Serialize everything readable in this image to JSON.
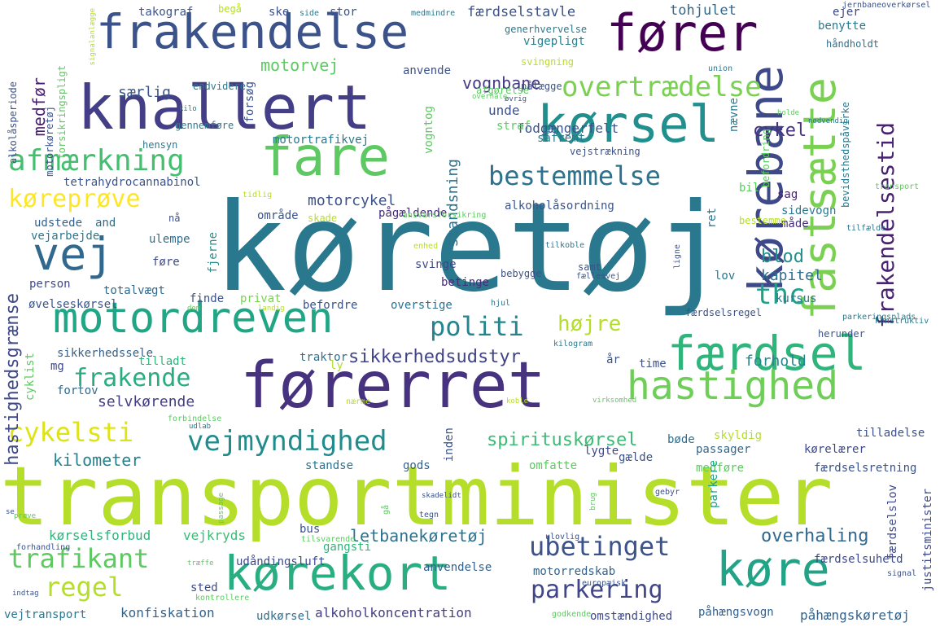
{
  "words": [
    {
      "text": "køretøj",
      "color": "#2a788e"
    },
    {
      "text": "transportminister",
      "color": "#b5de2b"
    },
    {
      "text": "førerret",
      "color": "#46327e"
    },
    {
      "text": "knallert",
      "color": "#433e85"
    },
    {
      "text": "frakendelse",
      "color": "#3b528b"
    },
    {
      "text": "fører",
      "color": "#440154"
    },
    {
      "text": "fare",
      "color": "#5ec962"
    },
    {
      "text": "kørsel",
      "color": "#218f8d"
    },
    {
      "text": "kørebane",
      "color": "#3e4989"
    },
    {
      "text": "fastsætte",
      "color": "#7ad151"
    },
    {
      "text": "frakendelsestid",
      "color": "#482173"
    },
    {
      "text": "motordreven",
      "color": "#21a685"
    },
    {
      "text": "færdsel",
      "color": "#2fb47c"
    },
    {
      "text": "hastighed",
      "color": "#6ece58"
    },
    {
      "text": "kørekort",
      "color": "#28ae80"
    },
    {
      "text": "køre",
      "color": "#20a386"
    },
    {
      "text": "vej",
      "color": "#31688e"
    },
    {
      "text": "afmærkning",
      "color": "#44bf70"
    },
    {
      "text": "overtrædelse",
      "color": "#7ad151"
    },
    {
      "text": "bestemmelse",
      "color": "#2c728e"
    },
    {
      "text": "vejmyndighed",
      "color": "#228c8d"
    },
    {
      "text": "politi",
      "color": "#25848e"
    },
    {
      "text": "ubetinget",
      "color": "#3b528b"
    },
    {
      "text": "parkering",
      "color": "#404688"
    },
    {
      "text": "trafikant",
      "color": "#5ec962"
    },
    {
      "text": "regel",
      "color": "#b5de2b"
    },
    {
      "text": "cykelsti",
      "color": "#dde318"
    },
    {
      "text": "køreprøve",
      "color": "#fde725"
    },
    {
      "text": "thc",
      "color": "#1fa088"
    },
    {
      "text": "højre",
      "color": "#b5de2b"
    },
    {
      "text": "frakende",
      "color": "#27ad81"
    },
    {
      "text": "sikkerhedsudstyr",
      "color": "#414487"
    },
    {
      "text": "spirituskørsel",
      "color": "#3bbb75"
    },
    {
      "text": "overhaling",
      "color": "#31688e"
    },
    {
      "text": "letbanekøretøj",
      "color": "#2c728e"
    },
    {
      "text": "motorcykel",
      "color": "#3b528b"
    },
    {
      "text": "vognbane",
      "color": "#443983"
    },
    {
      "text": "cykel",
      "color": "#46327e"
    },
    {
      "text": "medfør",
      "color": "#481f70"
    },
    {
      "text": "særlig",
      "color": "#39568c"
    },
    {
      "text": "motorvej",
      "color": "#5ec962"
    },
    {
      "text": "kilometer",
      "color": "#26828e"
    },
    {
      "text": "selvkørende",
      "color": "#433e85"
    },
    {
      "text": "blod",
      "color": "#218f8d"
    },
    {
      "text": "kapitel",
      "color": "#2e6e8e"
    },
    {
      "text": "forhold",
      "color": "#25858e"
    },
    {
      "text": "hastighedsgrænse",
      "color": "#3e4989"
    },
    {
      "text": "standsning",
      "color": "#2c728e"
    },
    {
      "text": "kørselsforbud",
      "color": "#2fb47c"
    },
    {
      "text": "vejkryds",
      "color": "#3bbb75"
    },
    {
      "text": "alkoholkoncentration",
      "color": "#433e85"
    },
    {
      "text": "konfiskation",
      "color": "#33638d"
    },
    {
      "text": "påhængskøretøj",
      "color": "#33638d"
    },
    {
      "text": "påhængsvogn",
      "color": "#34618d"
    },
    {
      "text": "takograf",
      "color": "#3a548c"
    },
    {
      "text": "færdselstavle",
      "color": "#3b528b"
    },
    {
      "text": "tohjulet",
      "color": "#31688e"
    },
    {
      "text": "vigepligt",
      "color": "#26828e"
    },
    {
      "text": "fodgængerfelt",
      "color": "#3b528b"
    },
    {
      "text": "tetrahydrocannabinol",
      "color": "#3b528b"
    },
    {
      "text": "motortrafikvej",
      "color": "#2a788e"
    },
    {
      "text": "sikkerhedssele",
      "color": "#34618d"
    },
    {
      "text": "alkoholåsordning",
      "color": "#3a548c"
    },
    {
      "text": "pågældende",
      "color": "#472d7b"
    },
    {
      "text": "område",
      "color": "#3a548c"
    },
    {
      "text": "person",
      "color": "#3e4989"
    },
    {
      "text": "totalvægt",
      "color": "#31688e"
    },
    {
      "text": "øvelseskørsel",
      "color": "#3a548c"
    },
    {
      "text": "ulempe",
      "color": "#2e6e8e"
    },
    {
      "text": "føre",
      "color": "#3e4989"
    },
    {
      "text": "udstede",
      "color": "#34618d"
    },
    {
      "text": "vejarbejde",
      "color": "#2a788e"
    },
    {
      "text": "and",
      "color": "#2e6e8e"
    },
    {
      "text": "lov",
      "color": "#2a788e"
    },
    {
      "text": "kursus",
      "color": "#2a788e"
    },
    {
      "text": "sag",
      "color": "#482173"
    },
    {
      "text": "bil",
      "color": "#5ec962"
    },
    {
      "text": "sidevogn",
      "color": "#2a788e"
    },
    {
      "text": "måde",
      "color": "#472d7b"
    },
    {
      "text": "ret",
      "color": "#2c728e"
    },
    {
      "text": "fjerne",
      "color": "#218f8d"
    },
    {
      "text": "finde",
      "color": "#3b528b"
    },
    {
      "text": "privat",
      "color": "#7ad151"
    },
    {
      "text": "befordre",
      "color": "#3b528b"
    },
    {
      "text": "overstige",
      "color": "#2c728e"
    },
    {
      "text": "betinge",
      "color": "#472d7b"
    },
    {
      "text": "svinge",
      "color": "#3e4989"
    },
    {
      "text": "traktor",
      "color": "#2e6e8e"
    },
    {
      "text": "ly",
      "color": "#b5de2b"
    },
    {
      "text": "år",
      "color": "#3b528b"
    },
    {
      "text": "time",
      "color": "#3b528b"
    },
    {
      "text": "tilladt",
      "color": "#2fb47c"
    },
    {
      "text": "cyklist",
      "color": "#5ec962"
    },
    {
      "text": "fortov",
      "color": "#31688e"
    },
    {
      "text": "mg",
      "color": "#3e4989"
    },
    {
      "text": "skyldig",
      "color": "#b5de2b"
    },
    {
      "text": "bøde",
      "color": "#2e6e8e"
    },
    {
      "text": "passager",
      "color": "#31688e"
    },
    {
      "text": "kørelærer",
      "color": "#3e4989"
    },
    {
      "text": "tilladelse",
      "color": "#3b528b"
    },
    {
      "text": "gælde",
      "color": "#3b528b"
    },
    {
      "text": "lygte",
      "color": "#3e4989"
    },
    {
      "text": "omfatte",
      "color": "#5ec962"
    },
    {
      "text": "medføre",
      "color": "#5ec962"
    },
    {
      "text": "færdselsretning",
      "color": "#3b528b"
    },
    {
      "text": "standse",
      "color": "#2c728e"
    },
    {
      "text": "gods",
      "color": "#34618d"
    },
    {
      "text": "inden",
      "color": "#3b528b"
    },
    {
      "text": "parkere",
      "color": "#1fa088"
    },
    {
      "text": "færdselslov",
      "color": "#3e4989"
    },
    {
      "text": "justitsminister",
      "color": "#3e4989"
    },
    {
      "text": "færdselsuheld",
      "color": "#3e4989"
    },
    {
      "text": "bus",
      "color": "#3b528b"
    },
    {
      "text": "gangsti",
      "color": "#2fb47c"
    },
    {
      "text": "anvendelse",
      "color": "#34618d"
    },
    {
      "text": "udåndingsluft",
      "color": "#3e4989"
    },
    {
      "text": "motorredskab",
      "color": "#33638d"
    },
    {
      "text": "sted",
      "color": "#3e4989"
    },
    {
      "text": "vejtransport",
      "color": "#2a788e"
    },
    {
      "text": "udkørsel",
      "color": "#2e6e8e"
    },
    {
      "text": "omstændighed",
      "color": "#3e4989"
    },
    {
      "text": "ejer",
      "color": "#3e4989"
    },
    {
      "text": "benytte",
      "color": "#2a788e"
    },
    {
      "text": "håndholdt",
      "color": "#2e6e8e"
    },
    {
      "text": "generhvervelse",
      "color": "#2a788e"
    },
    {
      "text": "svingning",
      "color": "#b5de2b"
    },
    {
      "text": "anvende",
      "color": "#3b528b"
    },
    {
      "text": "afgørelse",
      "color": "#5ec962"
    },
    {
      "text": "pålægge",
      "color": "#3b528b"
    },
    {
      "text": "unde",
      "color": "#3b528b"
    },
    {
      "text": "straf",
      "color": "#5ec962"
    },
    {
      "text": "såfremt",
      "color": "#2a788e"
    },
    {
      "text": "vejstrækning",
      "color": "#3b528b"
    },
    {
      "text": "nævne",
      "color": "#2a788e"
    },
    {
      "text": "befordring",
      "color": "#5ec962"
    },
    {
      "text": "bevidsthedspåvirke",
      "color": "#2a788e"
    },
    {
      "text": "alkolåsperiode",
      "color": "#3b528b"
    },
    {
      "text": "motorkøretøj",
      "color": "#3b528b"
    },
    {
      "text": "forsikringspligt",
      "color": "#5ec962"
    },
    {
      "text": "signalanlægge",
      "color": "#b5de2b"
    },
    {
      "text": "forsøg",
      "color": "#3b528b"
    },
    {
      "text": "endvidere",
      "color": "#2a788e"
    },
    {
      "text": "gennemføre",
      "color": "#2a788e"
    },
    {
      "text": "hensyn",
      "color": "#2a788e"
    },
    {
      "text": "vogntog",
      "color": "#5ec962"
    },
    {
      "text": "kilo",
      "color": "#2a788e"
    },
    {
      "text": "ske",
      "color": "#3b528b"
    },
    {
      "text": "side",
      "color": "#2a788e"
    },
    {
      "text": "stor",
      "color": "#3b528b"
    },
    {
      "text": "medmindre",
      "color": "#2a788e"
    },
    {
      "text": "begå",
      "color": "#b5de2b"
    },
    {
      "text": "jernbaneoverkørsel",
      "color": "#3b528b"
    },
    {
      "text": "union",
      "color": "#2a788e"
    },
    {
      "text": "overhale",
      "color": "#5ec962"
    },
    {
      "text": "øvrig",
      "color": "#3b528b"
    },
    {
      "text": "holde",
      "color": "#5ec962"
    },
    {
      "text": "nødvendig",
      "color": "#2a788e"
    },
    {
      "text": "tidlig",
      "color": "#b5de2b"
    },
    {
      "text": "transport",
      "color": "#5ec962"
    },
    {
      "text": "skade",
      "color": "#b5de2b"
    },
    {
      "text": "ansvarsforsikring",
      "color": "#5ec962"
    },
    {
      "text": "bestemme",
      "color": "#b5de2b"
    },
    {
      "text": "tilfælde",
      "color": "#2a788e"
    },
    {
      "text": "nå",
      "color": "#3b528b"
    },
    {
      "text": "enhed",
      "color": "#b5de2b"
    },
    {
      "text": "tilkoble",
      "color": "#2a788e"
    },
    {
      "text": "ligne",
      "color": "#3b528b"
    },
    {
      "text": "samt",
      "color": "#3b528b"
    },
    {
      "text": "fællesvej",
      "color": "#3b528b"
    },
    {
      "text": "bebygge",
      "color": "#3b528b"
    },
    {
      "text": "hjul",
      "color": "#2a788e"
    },
    {
      "text": "parkeringsplads",
      "color": "#2a788e"
    },
    {
      "text": "konstruktiv",
      "color": "#2a788e"
    },
    {
      "text": "herunder",
      "color": "#3b528b"
    },
    {
      "text": "færdselsregel",
      "color": "#3b528b"
    },
    {
      "text": "kilogram",
      "color": "#2a788e"
    },
    {
      "text": "dom",
      "color": "#5ec962"
    },
    {
      "text": "landig",
      "color": "#b5de2b"
    },
    {
      "text": "virksomhed",
      "color": "#5ec962"
    },
    {
      "text": "nærme",
      "color": "#b5de2b"
    },
    {
      "text": "koble",
      "color": "#b5de2b"
    },
    {
      "text": "forbindelse",
      "color": "#5ec962"
    },
    {
      "text": "udlab",
      "color": "#2a788e"
    },
    {
      "text": "prøve",
      "color": "#5ec962"
    },
    {
      "text": "passage",
      "color": "#5ec962"
    },
    {
      "text": "gå",
      "color": "#5ec962"
    },
    {
      "text": "tegn",
      "color": "#3b528b"
    },
    {
      "text": "skadelidt",
      "color": "#3b528b"
    },
    {
      "text": "brug",
      "color": "#5ec962"
    },
    {
      "text": "gebyr",
      "color": "#3b528b"
    },
    {
      "text": "se",
      "color": "#3b528b"
    },
    {
      "text": "forhandling",
      "color": "#3b528b"
    },
    {
      "text": "træffe",
      "color": "#5ec962"
    },
    {
      "text": "tilsvarende",
      "color": "#5ec962"
    },
    {
      "text": "ulovlig",
      "color": "#3b528b"
    },
    {
      "text": "europæisk",
      "color": "#3b528b"
    },
    {
      "text": "signal",
      "color": "#3b528b"
    },
    {
      "text": "indtag",
      "color": "#3b528b"
    },
    {
      "text": "kontrollere",
      "color": "#5ec962"
    },
    {
      "text": "godkende",
      "color": "#5ec962"
    }
  ]
}
